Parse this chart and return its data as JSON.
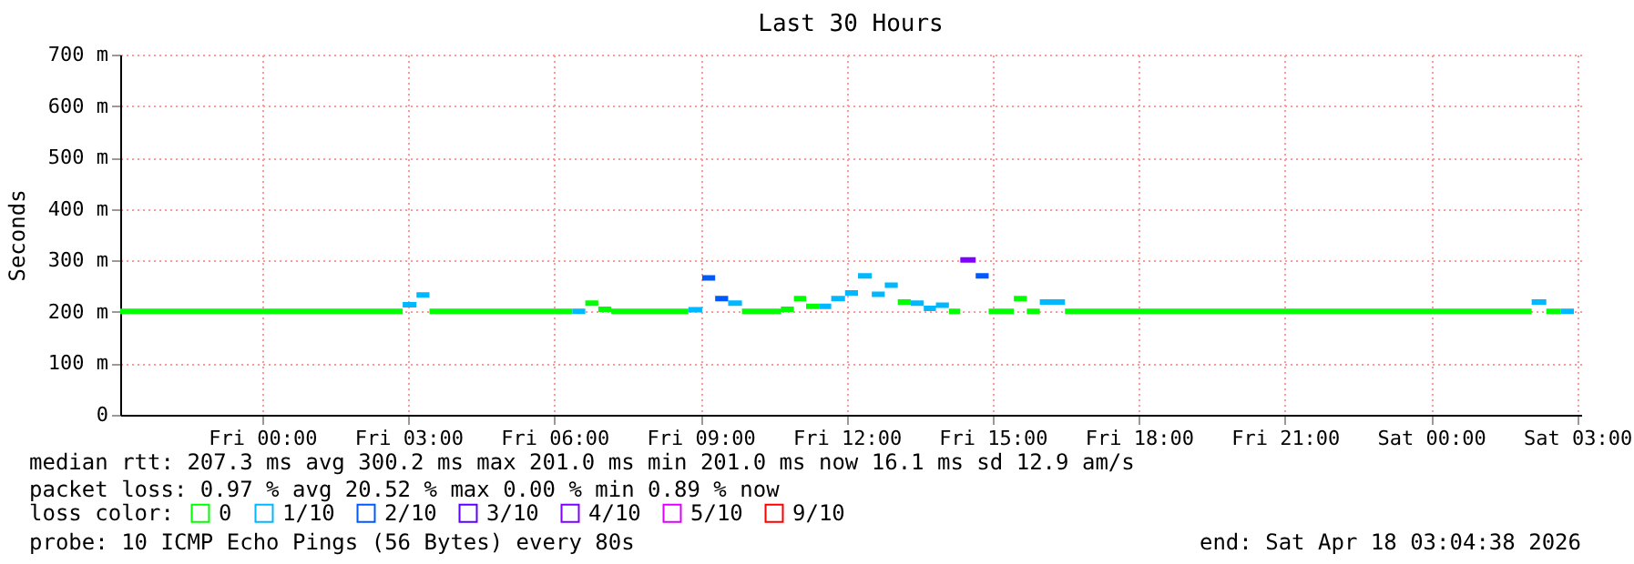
{
  "chart_data": {
    "type": "step",
    "title": "Last 30 Hours",
    "ylabel": "Seconds",
    "legend_title": "loss color:",
    "legend": "bottom",
    "grid": true,
    "line_style": "solid",
    "xlim": [
      "2026-04-16T21:05",
      "2026-04-18T03:05"
    ],
    "xticks": [
      {
        "value": "2026-04-17T00:00",
        "label": "Fri 00:00"
      },
      {
        "value": "2026-04-17T03:00",
        "label": "Fri 03:00"
      },
      {
        "value": "2026-04-17T06:00",
        "label": "Fri 06:00"
      },
      {
        "value": "2026-04-17T09:00",
        "label": "Fri 09:00"
      },
      {
        "value": "2026-04-17T12:00",
        "label": "Fri 12:00"
      },
      {
        "value": "2026-04-17T15:00",
        "label": "Fri 15:00"
      },
      {
        "value": "2026-04-17T18:00",
        "label": "Fri 18:00"
      },
      {
        "value": "2026-04-17T21:00",
        "label": "Fri 21:00"
      },
      {
        "value": "2026-04-18T00:00",
        "label": "Sat 00:00"
      },
      {
        "value": "2026-04-18T03:00",
        "label": "Sat 03:00"
      }
    ],
    "ylim": [
      0,
      700
    ],
    "yticks": [
      0,
      {
        "value": 100,
        "label": "100 m"
      },
      {
        "value": 200,
        "label": "200 m"
      },
      {
        "value": 300,
        "label": "300 m"
      },
      {
        "value": 400,
        "label": "400 m"
      },
      {
        "value": 500,
        "label": "500 m"
      },
      {
        "value": 600,
        "label": "600 m"
      },
      {
        "value": 700,
        "label": "700 m"
      }
    ],
    "series": [
      {
        "name": "0",
        "color": "#00ff00",
        "x": [
          "2026-04-16T21:05",
          "2026-04-17T02:53",
          null,
          "2026-04-17T03:26",
          "2026-04-17T06:22",
          null,
          "2026-04-17T06:38",
          "2026-04-17T06:54",
          null,
          "2026-04-17T06:54",
          "2026-04-17T07:10",
          null,
          "2026-04-17T07:10",
          "2026-04-17T08:45",
          null,
          "2026-04-17T09:51",
          "2026-04-17T10:39",
          null,
          "2026-04-17T10:39",
          "2026-04-17T10:55",
          null,
          "2026-04-17T10:55",
          "2026-04-17T11:10",
          null,
          "2026-04-17T11:10",
          "2026-04-17T11:26",
          null,
          "2026-04-17T13:03",
          "2026-04-17T13:19",
          null,
          "2026-04-17T14:06",
          "2026-04-17T14:20",
          null,
          "2026-04-17T14:55",
          "2026-04-17T15:26",
          null,
          "2026-04-17T15:26",
          "2026-04-17T15:42",
          null,
          "2026-04-17T15:42",
          "2026-04-17T15:58",
          null,
          "2026-04-17T16:29",
          "2026-04-18T02:04",
          null,
          "2026-04-18T02:22",
          "2026-04-18T02:40"
        ],
        "values": [
          201,
          201,
          null,
          201,
          201,
          null,
          217,
          217,
          null,
          205,
          205,
          null,
          201,
          201,
          null,
          201,
          201,
          null,
          205,
          205,
          null,
          226,
          226,
          null,
          211,
          211,
          null,
          219,
          219,
          null,
          201,
          201,
          null,
          201,
          201,
          null,
          226,
          226,
          null,
          201,
          201,
          null,
          201,
          201,
          null,
          201,
          201
        ]
      },
      {
        "name": "1/10",
        "color": "#00b8ff",
        "x": [
          "2026-04-17T02:53",
          "2026-04-17T03:10",
          null,
          "2026-04-17T03:10",
          "2026-04-17T03:26",
          null,
          "2026-04-17T06:22",
          "2026-04-17T06:38",
          null,
          "2026-04-17T08:45",
          "2026-04-17T09:02",
          null,
          "2026-04-17T09:34",
          "2026-04-17T09:51",
          null,
          "2026-04-17T11:26",
          "2026-04-17T11:41",
          null,
          "2026-04-17T11:41",
          "2026-04-17T11:58",
          null,
          "2026-04-17T11:58",
          "2026-04-17T12:14",
          null,
          "2026-04-17T12:14",
          "2026-04-17T12:31",
          null,
          "2026-04-17T12:31",
          "2026-04-17T12:47",
          null,
          "2026-04-17T12:47",
          "2026-04-17T13:03",
          null,
          "2026-04-17T13:19",
          "2026-04-17T13:35",
          null,
          "2026-04-17T13:35",
          "2026-04-17T13:50",
          null,
          "2026-04-17T13:50",
          "2026-04-17T14:06",
          null,
          "2026-04-17T15:58",
          "2026-04-17T16:29",
          null,
          "2026-04-18T02:04",
          "2026-04-18T02:22",
          null,
          "2026-04-18T02:40",
          "2026-04-18T02:56"
        ],
        "values": [
          214,
          214,
          null,
          233,
          233,
          null,
          201,
          201,
          null,
          204,
          204,
          null,
          217,
          217,
          null,
          211,
          211,
          null,
          226,
          226,
          null,
          237,
          237,
          null,
          270,
          270,
          null,
          234,
          234,
          null,
          252,
          252,
          null,
          217,
          217,
          null,
          207,
          207,
          null,
          213,
          213,
          null,
          219,
          219,
          null,
          219,
          219,
          null,
          201,
          201
        ]
      },
      {
        "name": "2/10",
        "color": "#0059ff",
        "x": [
          "2026-04-17T09:02",
          "2026-04-17T09:18",
          null,
          "2026-04-17T09:18",
          "2026-04-17T09:34",
          null,
          "2026-04-17T14:39",
          "2026-04-17T14:55"
        ],
        "values": [
          266,
          266,
          null,
          226,
          226,
          null,
          270,
          270
        ]
      },
      {
        "name": "3/10",
        "color": "#5e00ff"
      },
      {
        "name": "4/10",
        "color": "#7e00ff",
        "x": [
          "2026-04-17T14:20",
          "2026-04-17T14:39"
        ],
        "values": [
          301,
          301
        ]
      },
      {
        "name": "5/10",
        "color": "#dd00ff"
      },
      {
        "name": "9/10",
        "color": "#ff0000"
      }
    ],
    "annotations": [
      "median rtt:  207.3 ms avg  300.2 ms max  201.0 ms min  201.0 ms now  16.1 ms sd  12.9   am/s",
      "packet loss: 0.97 % avg  20.52 % max  0.00 % min  0.89 % now",
      "probe:       10 ICMP Echo Pings (56 Bytes) every 80s",
      "end: Sat Apr 18 03:04:38 2026"
    ]
  }
}
